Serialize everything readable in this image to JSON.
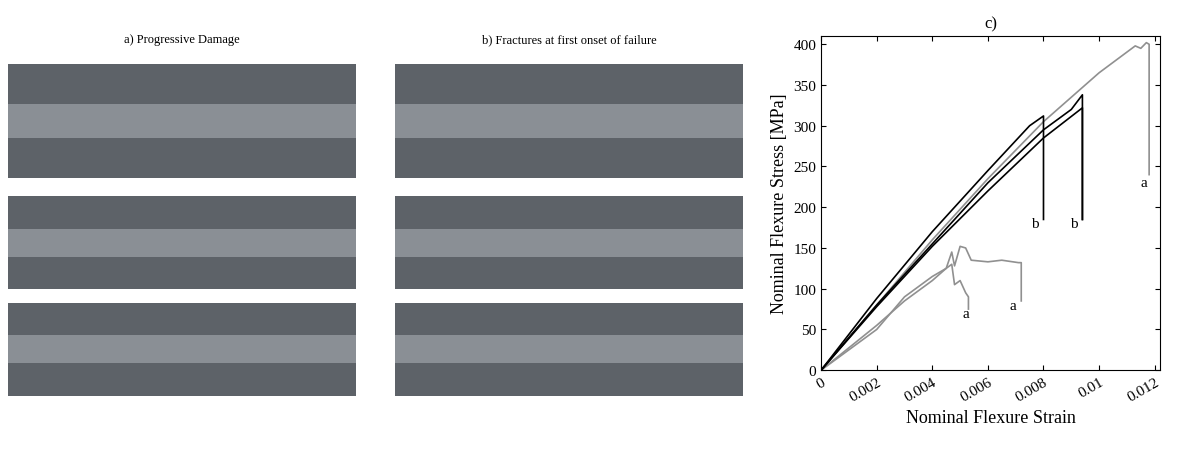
{
  "panels": [
    {
      "title": "a) Progressive Damage"
    },
    {
      "title": "b) Fractures at first onset of failure"
    }
  ],
  "chart_data": {
    "type": "line",
    "title": "c)",
    "x_label": "Nominal Flexure Strain",
    "y_label": "Nominal Flexure Stress [MPa]",
    "xlim": [
      0,
      0.0122
    ],
    "ylim": [
      0,
      410
    ],
    "xticks": [
      0,
      0.002,
      0.004,
      0.006,
      0.008,
      0.01,
      0.012
    ],
    "yticks": [
      0,
      50,
      100,
      150,
      200,
      250,
      300,
      350,
      400
    ],
    "grid": false,
    "series": [
      {
        "color": "#909090",
        "x": [
          0,
          0.002,
          0.004,
          0.006,
          0.008,
          0.01,
          0.0113,
          0.0115,
          0.0117,
          0.0118,
          0.0118
        ],
        "values": [
          0,
          80,
          160,
          235,
          305,
          365,
          398,
          395,
          402,
          400,
          240
        ]
      },
      {
        "color": "#909090",
        "x": [
          0,
          0.002,
          0.003,
          0.004,
          0.0045,
          0.0047,
          0.0048,
          0.005,
          0.0052,
          0.0054,
          0.006,
          0.0065,
          0.0071,
          0.0072,
          0.0072
        ],
        "values": [
          0,
          55,
          85,
          110,
          125,
          145,
          128,
          152,
          150,
          135,
          133,
          135,
          132,
          132,
          85
        ]
      },
      {
        "color": "#909090",
        "x": [
          0,
          0.002,
          0.003,
          0.004,
          0.0045,
          0.0047,
          0.0048,
          0.005,
          0.0052,
          0.0053,
          0.0053
        ],
        "values": [
          0,
          50,
          90,
          115,
          125,
          130,
          105,
          110,
          95,
          90,
          75
        ]
      },
      {
        "color": "#000000",
        "x": [
          0,
          0.002,
          0.004,
          0.006,
          0.0075,
          0.008,
          0.008
        ],
        "values": [
          0,
          88,
          170,
          245,
          300,
          312,
          185
        ]
      },
      {
        "color": "#000000",
        "x": [
          0,
          0.002,
          0.004,
          0.006,
          0.008,
          0.009,
          0.0094,
          0.0094
        ],
        "values": [
          0,
          80,
          155,
          230,
          295,
          320,
          338,
          185
        ]
      },
      {
        "color": "#000000",
        "x": [
          0,
          0.002,
          0.004,
          0.006,
          0.008,
          0.0094,
          0.0094
        ],
        "values": [
          0,
          78,
          152,
          220,
          285,
          322,
          185
        ]
      }
    ],
    "annotations": [
      {
        "text": "a",
        "x": 0.0116,
        "y": 230
      },
      {
        "text": "b",
        "x": 0.0077,
        "y": 180
      },
      {
        "text": "b",
        "x": 0.0091,
        "y": 180
      },
      {
        "text": "a",
        "x": 0.0052,
        "y": 70
      },
      {
        "text": "a",
        "x": 0.0069,
        "y": 80
      }
    ]
  }
}
